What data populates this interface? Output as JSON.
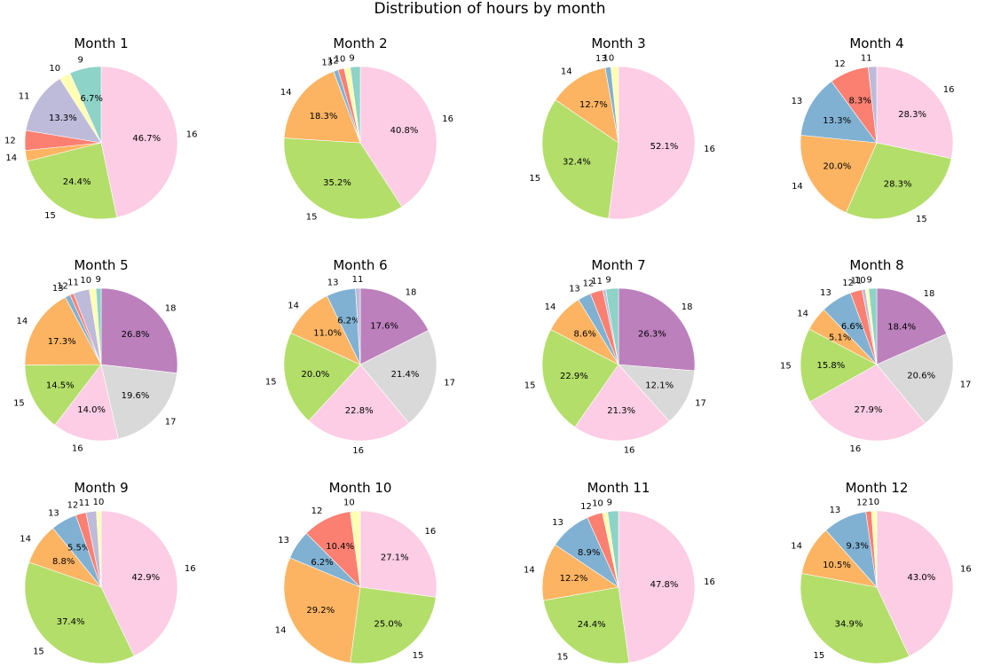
{
  "figure": {
    "title": "Distribution of hours by month"
  },
  "colors": {
    "9": "#8dd3c7",
    "10": "#ffffb3",
    "11": "#bebada",
    "12": "#fb8072",
    "13": "#80b1d3",
    "14": "#fdb462",
    "15": "#b3de69",
    "16": "#fccde5",
    "17": "#d9d9d9",
    "18": "#bc80bd"
  },
  "chart_data": [
    {
      "type": "pie",
      "title": "Month 1",
      "labels": [
        "16",
        "15",
        "14",
        "12",
        "11",
        "10",
        "9"
      ],
      "values": [
        46.7,
        24.4,
        2.3,
        4.2,
        13.3,
        2.4,
        6.7
      ],
      "pct_labels": [
        "46.7%",
        "24.4%",
        "",
        "",
        "13.3%",
        "",
        "6.7%"
      ]
    },
    {
      "type": "pie",
      "title": "Month 2",
      "labels": [
        "16",
        "15",
        "14",
        "13",
        "12",
        "10",
        "9"
      ],
      "values": [
        40.8,
        35.2,
        18.3,
        1.0,
        1.3,
        1.3,
        2.1
      ],
      "pct_labels": [
        "40.8%",
        "35.2%",
        "18.3%",
        "",
        "",
        "",
        ""
      ]
    },
    {
      "type": "pie",
      "title": "Month 3",
      "labels": [
        "16",
        "15",
        "14",
        "13",
        "10"
      ],
      "values": [
        52.1,
        32.4,
        12.7,
        1.2,
        1.6
      ],
      "pct_labels": [
        "52.1%",
        "32.4%",
        "12.7%",
        "",
        ""
      ]
    },
    {
      "type": "pie",
      "title": "Month 4",
      "labels": [
        "16",
        "15",
        "14",
        "13",
        "12",
        "11"
      ],
      "values": [
        28.3,
        28.3,
        20.0,
        13.3,
        8.3,
        1.8
      ],
      "pct_labels": [
        "28.3%",
        "28.3%",
        "20.0%",
        "13.3%",
        "8.3%",
        ""
      ]
    },
    {
      "type": "pie",
      "title": "Month 5",
      "labels": [
        "18",
        "17",
        "16",
        "15",
        "14",
        "13",
        "12",
        "11",
        "10",
        "9"
      ],
      "values": [
        26.8,
        19.6,
        14.0,
        14.5,
        17.3,
        1.1,
        0.8,
        3.4,
        1.4,
        1.1
      ],
      "pct_labels": [
        "26.8%",
        "19.6%",
        "14.0%",
        "14.5%",
        "17.3%",
        "",
        "",
        "",
        "",
        ""
      ]
    },
    {
      "type": "pie",
      "title": "Month 6",
      "labels": [
        "18",
        "17",
        "16",
        "15",
        "14",
        "13",
        "11"
      ],
      "values": [
        17.6,
        21.4,
        22.8,
        20.0,
        11.0,
        6.2,
        1.0
      ],
      "pct_labels": [
        "17.6%",
        "21.4%",
        "22.8%",
        "20.0%",
        "11.0%",
        "6.2%",
        ""
      ]
    },
    {
      "type": "pie",
      "title": "Month 7",
      "labels": [
        "18",
        "17",
        "16",
        "15",
        "14",
        "13",
        "12",
        "11",
        "9"
      ],
      "values": [
        26.3,
        12.1,
        21.3,
        22.9,
        8.6,
        2.8,
        2.7,
        0.6,
        2.7
      ],
      "pct_labels": [
        "26.3%",
        "12.1%",
        "21.3%",
        "22.9%",
        "8.6%",
        "",
        "",
        "",
        ""
      ]
    },
    {
      "type": "pie",
      "title": "Month 8",
      "labels": [
        "18",
        "17",
        "16",
        "15",
        "14",
        "13",
        "12",
        "11",
        "10",
        "9"
      ],
      "values": [
        18.4,
        20.6,
        27.9,
        15.8,
        5.1,
        6.6,
        2.5,
        0.7,
        0.7,
        1.7
      ],
      "pct_labels": [
        "18.4%",
        "20.6%",
        "27.9%",
        "15.8%",
        "5.1%",
        "6.6%",
        "",
        "",
        "",
        ""
      ]
    },
    {
      "type": "pie",
      "title": "Month 9",
      "labels": [
        "16",
        "15",
        "14",
        "13",
        "12",
        "11",
        "10"
      ],
      "values": [
        42.9,
        37.4,
        8.8,
        5.5,
        2.2,
        2.2,
        1.0
      ],
      "pct_labels": [
        "42.9%",
        "37.4%",
        "8.8%",
        "5.5%",
        "",
        "",
        ""
      ]
    },
    {
      "type": "pie",
      "title": "Month 10",
      "labels": [
        "16",
        "15",
        "14",
        "13",
        "12",
        "10"
      ],
      "values": [
        27.1,
        25.0,
        29.2,
        6.2,
        10.4,
        2.1
      ],
      "pct_labels": [
        "27.1%",
        "25.0%",
        "29.2%",
        "6.2%",
        "10.4%",
        ""
      ]
    },
    {
      "type": "pie",
      "title": "Month 11",
      "labels": [
        "16",
        "15",
        "14",
        "13",
        "12",
        "10",
        "9"
      ],
      "values": [
        47.8,
        24.4,
        12.2,
        8.9,
        3.3,
        1.1,
        2.3
      ],
      "pct_labels": [
        "47.8%",
        "24.4%",
        "12.2%",
        "8.9%",
        "",
        "",
        ""
      ]
    },
    {
      "type": "pie",
      "title": "Month 12",
      "labels": [
        "16",
        "15",
        "14",
        "13",
        "12",
        "10"
      ],
      "values": [
        43.0,
        34.9,
        10.5,
        9.3,
        1.2,
        1.1
      ],
      "pct_labels": [
        "43.0%",
        "34.9%",
        "10.5%",
        "9.3%",
        "",
        ""
      ]
    }
  ]
}
